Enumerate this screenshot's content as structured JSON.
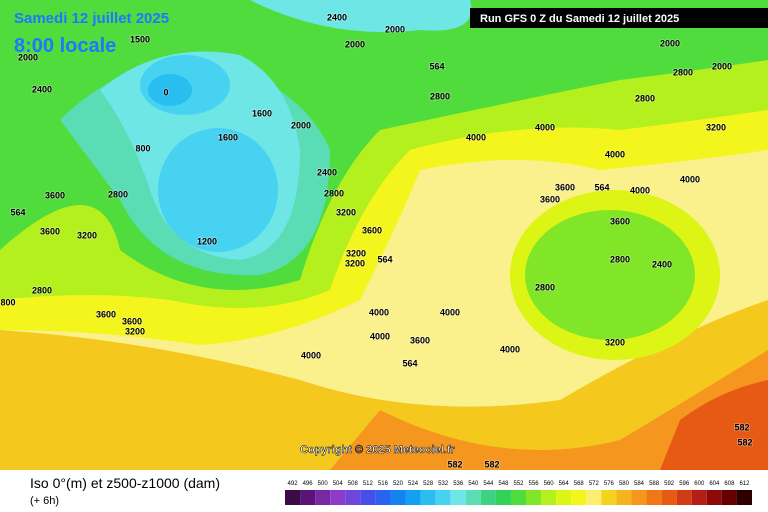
{
  "header": {
    "date": "Samedi 12 juillet 2025",
    "time": "8:00 locale",
    "run": "Run GFS 0 Z du Samedi 12 juillet 2025"
  },
  "copyright": "Copyright © 2025 Meteociel.fr",
  "footer": {
    "title": "Iso 0°(m) et z500-z1000 (dam)",
    "step": "(+ 6h)"
  },
  "legend": {
    "values": [
      492,
      496,
      500,
      504,
      508,
      512,
      516,
      520,
      524,
      528,
      532,
      536,
      540,
      544,
      548,
      552,
      556,
      560,
      564,
      568,
      572,
      576,
      580,
      584,
      588,
      592,
      596,
      600,
      604,
      608,
      612
    ],
    "colors": [
      "#3c0a46",
      "#5a1478",
      "#7828a0",
      "#8c3cc8",
      "#6e46dc",
      "#4650e6",
      "#2864f0",
      "#1482f0",
      "#14a0f0",
      "#28bef0",
      "#46d2f0",
      "#6ee6e6",
      "#5adcb4",
      "#3cd282",
      "#32d25a",
      "#50dc3c",
      "#82e628",
      "#b4f01e",
      "#dcf514",
      "#f5f51e",
      "#faf06e",
      "#f5d21e",
      "#f5b41e",
      "#f5961e",
      "#f07814",
      "#e65a14",
      "#d23c14",
      "#b41e14",
      "#8c0a0a",
      "#640000",
      "#2d0000"
    ]
  },
  "map_labels": [
    "2400",
    "2000",
    "2000",
    "1500",
    "2000",
    "2400",
    "0",
    "1600",
    "1200",
    "2000",
    "2400",
    "2800",
    "3200",
    "3600",
    "3200",
    "3200",
    "2800",
    "4000",
    "4000",
    "3200",
    "2800",
    "2000",
    "2800",
    "2000",
    "4000",
    "3600",
    "3600",
    "4000",
    "4000",
    "3600",
    "2800",
    "2400",
    "2800",
    "3200",
    "4000",
    "4000",
    "4000",
    "3600",
    "4000",
    "4000",
    "3600",
    "3600",
    "3200",
    "2800",
    "3600",
    "3600",
    "3200",
    "2800",
    "800",
    "1600",
    "564",
    "564",
    "564",
    "564",
    "564",
    "582",
    "582",
    "582",
    "582",
    "800"
  ]
}
